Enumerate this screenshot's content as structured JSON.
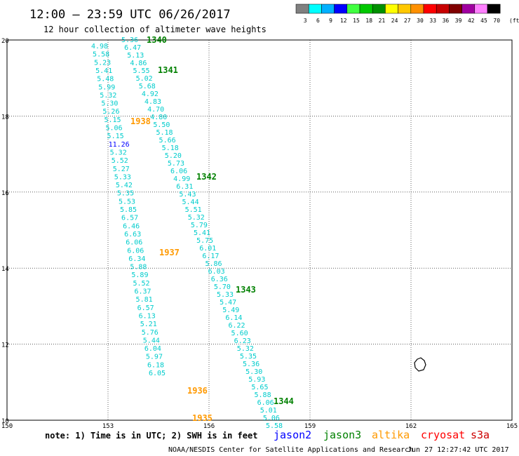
{
  "header": {
    "title": "12:00 – 23:59 UTC 06/26/2017",
    "subtitle": "12 hour collection of altimeter wave heights"
  },
  "colorbar": {
    "labels": [
      "3",
      "6",
      "9",
      "12",
      "15",
      "18",
      "21",
      "24",
      "27",
      "30",
      "33",
      "36",
      "39",
      "42",
      "45",
      "70"
    ],
    "unit": "(ft)",
    "colors": [
      "#808080",
      "#00ffff",
      "#00b0ff",
      "#0000ff",
      "#40ff40",
      "#00c800",
      "#009000",
      "#ffff00",
      "#ffc800",
      "#ff9000",
      "#ff0000",
      "#c80000",
      "#800000",
      "#a000a0",
      "#ff80ff",
      "#000000"
    ]
  },
  "map": {
    "lon_ticks": [
      "150",
      "153",
      "156",
      "159",
      "162",
      "165"
    ],
    "lat_ticks": [
      "10",
      "12",
      "14",
      "16",
      "18",
      "20"
    ],
    "lon_range": [
      150,
      165
    ],
    "lat_range": [
      10,
      20
    ]
  },
  "tracks": {
    "tracks": [
      {
        "values": [
          "4.98",
          "5.58",
          "5.23",
          "5.41",
          "5.48",
          "5.99",
          "5.32",
          "5.30",
          "5.26",
          "5.15",
          "5.06",
          "5.15",
          "11.26",
          "5.32",
          "5.52",
          "5.27",
          "5.33",
          "5.42",
          "5.35",
          "5.53",
          "5.85",
          "6.57",
          "6.46",
          "6.63",
          "6.06",
          "6.06",
          "6.34",
          "5.88",
          "5.89",
          "5.52",
          "6.37",
          "5.81",
          "6.57",
          "6.13",
          "5.21",
          "5.76",
          "5.44",
          "6.04",
          "5.97",
          "6.18",
          "6.05"
        ]
      },
      {
        "values": [
          "5.36",
          "6.47",
          "5.13",
          "4.86",
          "5.55",
          "5.02",
          "5.68",
          "4.92",
          "4.83",
          "4.70",
          "4.80",
          "5.50",
          "5.18",
          "5.66",
          "5.18",
          "5.20",
          "5.73",
          "6.06",
          "4.99",
          "6.31",
          "5.43",
          "5.44",
          "5.51",
          "5.32",
          "5.79",
          "5.41",
          "5.75",
          "6.01",
          "6.17",
          "5.86",
          "6.03",
          "6.36",
          "5.70",
          "5.33",
          "5.47",
          "5.49",
          "6.14",
          "6.22",
          "5.60",
          "6.23",
          "5.32",
          "5.35",
          "5.36",
          "5.30",
          "5.93",
          "5.65",
          "5.88",
          "6.06",
          "5.01",
          "5.06",
          "5.58"
        ]
      }
    ],
    "passes": [
      {
        "label": "1340",
        "color": "#008000"
      },
      {
        "label": "1341",
        "color": "#008000"
      },
      {
        "label": "1938",
        "color": "#ff9900"
      },
      {
        "label": "1342",
        "color": "#008000"
      },
      {
        "label": "1937",
        "color": "#ff9900"
      },
      {
        "label": "1343",
        "color": "#008000"
      },
      {
        "label": "1936",
        "color": "#ff9900"
      },
      {
        "label": "1344",
        "color": "#008000"
      },
      {
        "label": "1935",
        "color": "#ff9900"
      }
    ]
  },
  "note": {
    "text": "note: 1) Time is in UTC; 2) SWH is in feet",
    "satellites": [
      {
        "name": "jason2",
        "color": "#0000ff"
      },
      {
        "name": "jason3",
        "color": "#008000"
      },
      {
        "name": "altika",
        "color": "#ff9900"
      },
      {
        "name": "cryosat",
        "color": "#ff0000"
      },
      {
        "name": "s3a",
        "color": "#cc0000"
      }
    ]
  },
  "footer": {
    "source": "NOAA/NESDIS Center for Satellite Applications and Research",
    "timestamp": "Jun 27 12:27:42 UTC 2017"
  }
}
